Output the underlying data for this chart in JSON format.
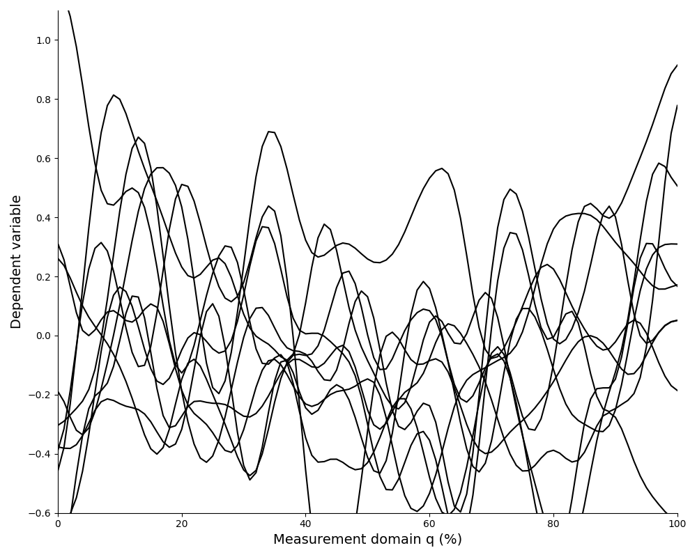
{
  "title": "",
  "xlabel": "Measurement domain q (%)",
  "ylabel": "Dependent variable",
  "xlim": [
    0,
    100
  ],
  "ylim": [
    -0.6,
    1.1
  ],
  "line_color": "#000000",
  "line_width": 1.5,
  "background_color": "#ffffff",
  "n_points": 101,
  "n_subjects": 10,
  "xticks": [
    0,
    20,
    40,
    60,
    80,
    100
  ],
  "yticks": [
    -0.6,
    -0.4,
    -0.2,
    0.0,
    0.2,
    0.4,
    0.6,
    0.8,
    1.0
  ],
  "figsize": [
    10,
    8
  ],
  "dpi": 100
}
